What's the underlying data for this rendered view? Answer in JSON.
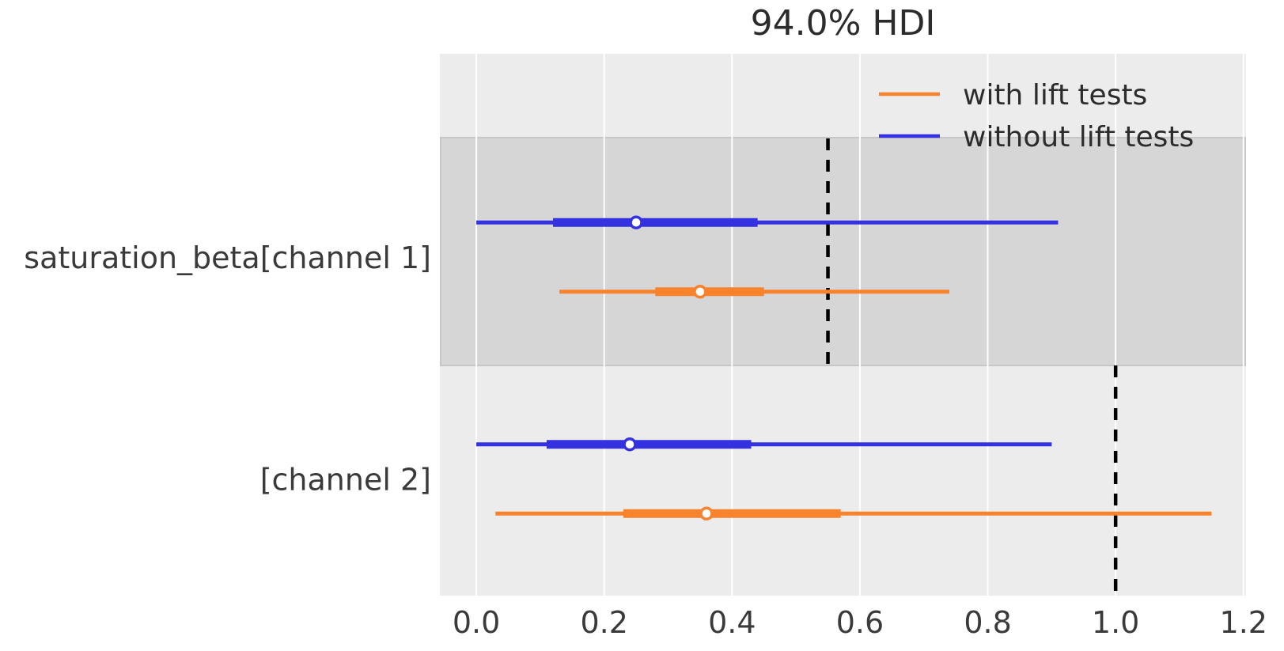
{
  "chart_data": {
    "type": "forest",
    "title": "94.0% HDI",
    "xlabel": "",
    "ylabel": "",
    "xlim": [
      -0.057,
      1.204
    ],
    "x_ticks": [
      0.0,
      0.2,
      0.4,
      0.6,
      0.8,
      1.0,
      1.2
    ],
    "grid": "vertical-white-gridlines",
    "legend_position": "upper-right-inside",
    "legend": [
      {
        "label": "with lift tests",
        "color": "#f8832c"
      },
      {
        "label": "without lift tests",
        "color": "#3431e0"
      }
    ],
    "rows": [
      {
        "label": "saturation_beta[channel 1]",
        "shaded": true,
        "reference_value": 0.55,
        "series": [
          {
            "name": "without lift tests",
            "color": "#3431e0",
            "hdi_low": 0.0,
            "hdi_high": 0.91,
            "quartile_low": 0.12,
            "quartile_high": 0.44,
            "median": 0.25
          },
          {
            "name": "with lift tests",
            "color": "#f8832c",
            "hdi_low": 0.13,
            "hdi_high": 0.74,
            "quartile_low": 0.28,
            "quartile_high": 0.45,
            "median": 0.35
          }
        ]
      },
      {
        "label": "[channel 2]",
        "shaded": false,
        "reference_value": 1.0,
        "series": [
          {
            "name": "without lift tests",
            "color": "#3431e0",
            "hdi_low": 0.0,
            "hdi_high": 0.9,
            "quartile_low": 0.11,
            "quartile_high": 0.43,
            "median": 0.24
          },
          {
            "name": "with lift tests",
            "color": "#f8832c",
            "hdi_low": 0.03,
            "hdi_high": 1.15,
            "quartile_low": 0.23,
            "quartile_high": 0.57,
            "median": 0.36
          }
        ]
      }
    ],
    "colors": {
      "figure_bg": "#ffffff",
      "axes_bg": "#ececec",
      "band": "#d6d6d6",
      "band_edge": "#c6c6c6",
      "gridline": "#ffffff",
      "reference_line": "#000000",
      "marker_fill": "#ffffff",
      "tick_label": "#3a3a3a",
      "text": "#2c2c2c"
    }
  }
}
